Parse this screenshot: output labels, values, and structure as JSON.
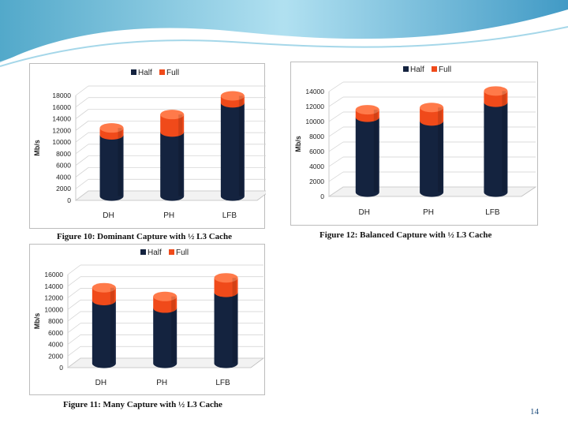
{
  "slide_number": "14",
  "colors": {
    "half": "#14233f",
    "half_dark": "#0a1426",
    "full": "#f04a1a",
    "full_top": "#ff7a4a",
    "wave": "#7fc6e0"
  },
  "chart_data": [
    {
      "type": "bar",
      "title": "",
      "caption": "Figure 10:  Dominant Capture with ½ L3 Cache",
      "categories": [
        "DH",
        "PH",
        "LFB"
      ],
      "series": [
        {
          "name": "Half",
          "values": [
            10500,
            11000,
            16000
          ]
        },
        {
          "name": "Full",
          "values": [
            1200,
            3000,
            1200
          ]
        }
      ],
      "xlabel": "",
      "ylabel": "Mb/s",
      "ylim": [
        0,
        18000
      ],
      "yticks": [
        "0",
        "2000",
        "4000",
        "6000",
        "8000",
        "10000",
        "12000",
        "14000",
        "16000",
        "18000"
      ],
      "legend": [
        "Half",
        "Full"
      ],
      "legend_position": "top"
    },
    {
      "type": "bar",
      "title": "",
      "caption": "Figure 12:  Balanced Capture with ½ L3 Cache",
      "categories": [
        "DH",
        "PH",
        "LFB"
      ],
      "series": [
        {
          "name": "Half",
          "values": [
            10000,
            9500,
            12000
          ]
        },
        {
          "name": "Full",
          "values": [
            1000,
            1800,
            1500
          ]
        }
      ],
      "xlabel": "",
      "ylabel": "Mb/s",
      "ylim": [
        0,
        14000
      ],
      "yticks": [
        "0",
        "2000",
        "4000",
        "6000",
        "8000",
        "10000",
        "12000",
        "14000"
      ],
      "legend": [
        "Half",
        "Full"
      ],
      "legend_position": "top"
    },
    {
      "type": "bar",
      "title": "",
      "caption": "Figure 11:  Many Capture with ½ L3 Cache",
      "categories": [
        "DH",
        "PH",
        "LFB"
      ],
      "series": [
        {
          "name": "Half",
          "values": [
            10800,
            9500,
            12200
          ]
        },
        {
          "name": "Full",
          "values": [
            2200,
            2000,
            2500
          ]
        }
      ],
      "xlabel": "",
      "ylabel": "Mb/s",
      "ylim": [
        0,
        16000
      ],
      "yticks": [
        "0",
        "2000",
        "4000",
        "6000",
        "8000",
        "10000",
        "12000",
        "14000",
        "16000"
      ],
      "legend": [
        "Half",
        "Full"
      ],
      "legend_position": "top"
    }
  ]
}
